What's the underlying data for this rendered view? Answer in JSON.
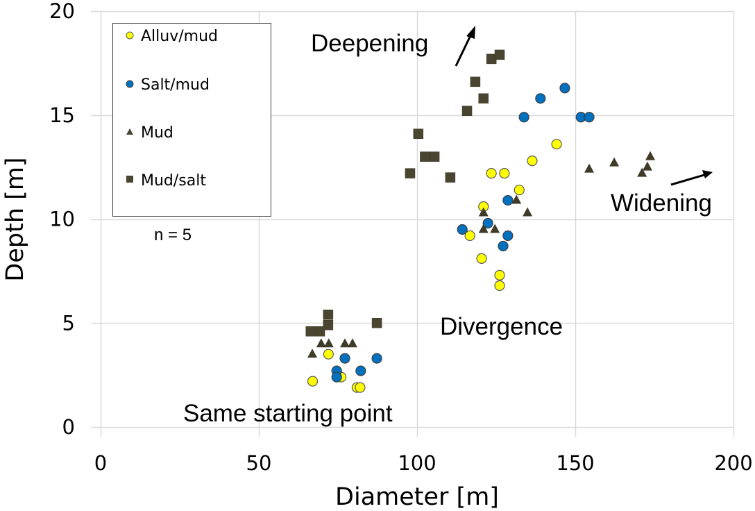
{
  "chart_data": {
    "type": "scatter",
    "title": "",
    "xlabel": "Diameter [m]",
    "ylabel": "Depth [m]",
    "xlim": [
      0,
      200
    ],
    "ylim": [
      0,
      20
    ],
    "xticks": [
      0,
      50,
      100,
      150,
      200
    ],
    "yticks": [
      0,
      5,
      10,
      15,
      20
    ],
    "grid": true,
    "legend_position": "top-left",
    "series": [
      {
        "name": "Alluv/mud",
        "marker": "circle",
        "color": "#ffff00",
        "edge_color": "#595959",
        "points": [
          [
            67,
            2.2
          ],
          [
            72,
            3.5
          ],
          [
            76,
            2.4
          ],
          [
            81,
            1.9
          ],
          [
            82,
            1.9
          ],
          [
            116.7,
            9.2
          ],
          [
            120.4,
            8.1
          ],
          [
            121,
            10.6
          ],
          [
            123.5,
            12.2
          ],
          [
            126.1,
            7.3
          ],
          [
            126.1,
            6.8
          ],
          [
            127.6,
            12.2
          ],
          [
            132.3,
            11.4
          ],
          [
            136.4,
            12.8
          ],
          [
            144.1,
            13.6
          ]
        ]
      },
      {
        "name": "Salt/mud",
        "marker": "circle",
        "color": "#0070c0",
        "edge_color": "#404040",
        "points": [
          [
            74.6,
            2.7
          ],
          [
            74.6,
            2.4
          ],
          [
            77.2,
            3.3
          ],
          [
            82.2,
            2.7
          ],
          [
            87.3,
            3.3
          ],
          [
            114.3,
            9.5
          ],
          [
            122.4,
            9.8
          ],
          [
            127.2,
            8.7
          ],
          [
            128.7,
            9.2
          ],
          [
            128.7,
            10.9
          ],
          [
            133.8,
            14.9
          ],
          [
            139,
            15.8
          ],
          [
            146.7,
            16.3
          ],
          [
            151.8,
            14.9
          ],
          [
            154.4,
            14.9
          ]
        ]
      },
      {
        "name": "Mud",
        "marker": "triangle",
        "color": "#3f3b28",
        "points": [
          [
            66.9,
            3.5
          ],
          [
            69.7,
            4.0
          ],
          [
            72.1,
            4.0
          ],
          [
            77.2,
            4.0
          ],
          [
            79.6,
            4.0
          ],
          [
            121,
            10.3
          ],
          [
            121,
            9.5
          ],
          [
            124.6,
            9.5
          ],
          [
            131.4,
            10.9
          ],
          [
            134.9,
            10.3
          ],
          [
            154.4,
            12.4
          ],
          [
            162.3,
            12.7
          ],
          [
            171.1,
            12.2
          ],
          [
            172.8,
            12.5
          ],
          [
            173.7,
            13.0
          ]
        ]
      },
      {
        "name": "Mud/salt",
        "marker": "square",
        "color": "#4a4530",
        "points": [
          [
            66.4,
            4.6
          ],
          [
            69.3,
            4.6
          ],
          [
            71.9,
            4.9
          ],
          [
            71.9,
            5.4
          ],
          [
            87.3,
            5.0
          ],
          [
            97.8,
            12.2
          ],
          [
            100.4,
            14.1
          ],
          [
            102.5,
            13.0
          ],
          [
            105.5,
            13.0
          ],
          [
            110.5,
            12.0
          ],
          [
            115.8,
            15.2
          ],
          [
            118.4,
            16.6
          ],
          [
            121,
            15.8
          ],
          [
            123.5,
            17.7
          ],
          [
            126.1,
            17.9
          ]
        ]
      }
    ],
    "annotations": [
      {
        "text": "Deepening",
        "x": 66,
        "y": 18.5,
        "arrow": {
          "from": [
            112,
            17.4
          ],
          "to": [
            118,
            19.3
          ]
        }
      },
      {
        "text": "Widening",
        "x": 161,
        "y": 10.7,
        "arrow": {
          "from": [
            180,
            11.7
          ],
          "to": [
            193,
            12.3
          ]
        }
      },
      {
        "text": "Divergence",
        "x": 107,
        "y": 4.7
      },
      {
        "text": "Same starting point",
        "x": 26,
        "y": 0.6
      },
      {
        "text": "n = 5",
        "x": 17,
        "y": 9.3
      }
    ]
  },
  "legend": {
    "items": [
      "Alluv/mud",
      "Salt/mud",
      "Mud",
      "Mud/salt"
    ]
  },
  "labels": {
    "n_label": "n = 5",
    "deepening": "Deepening",
    "widening": "Widening",
    "divergence": "Divergence",
    "same_start": "Same starting point"
  }
}
